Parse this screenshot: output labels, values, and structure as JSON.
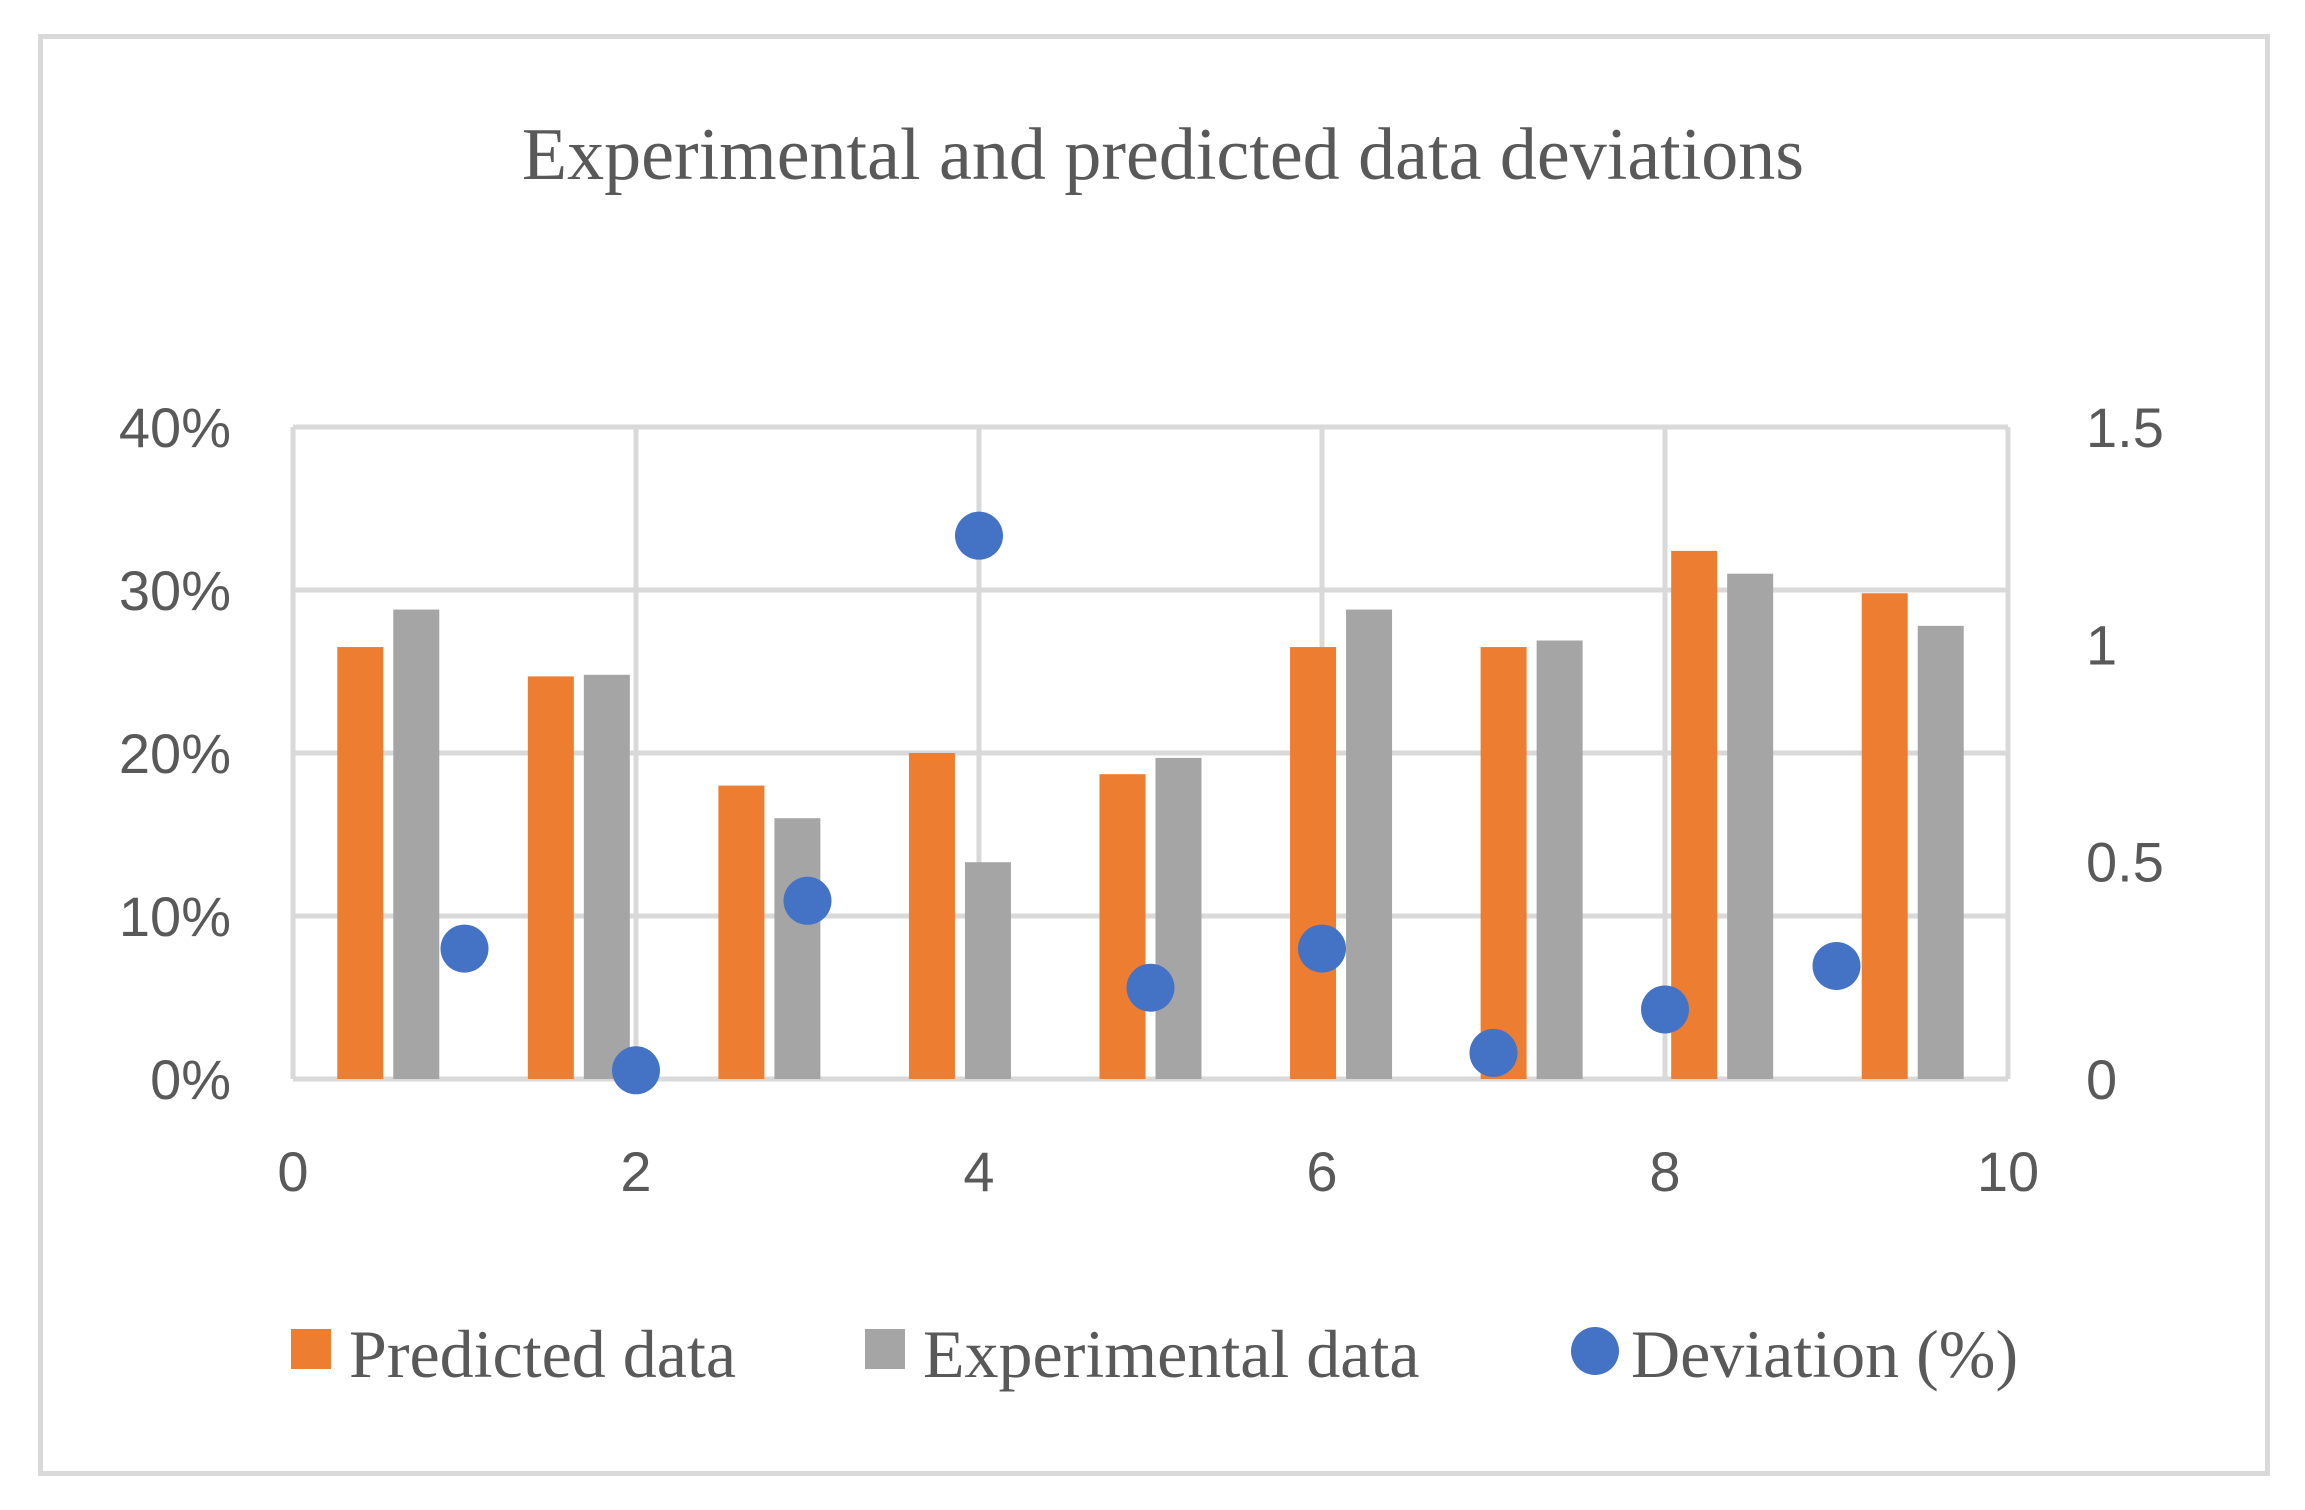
{
  "chart_data": {
    "type": "bar",
    "title": "Experimental and predicted data deviations",
    "x_axis": {
      "min": 0,
      "max": 10,
      "ticks": [
        "0",
        "2",
        "4",
        "6",
        "8",
        "10"
      ]
    },
    "y_left": {
      "min": 0,
      "max": 0.4,
      "ticks": [
        "0%",
        "10%",
        "20%",
        "30%",
        "40%"
      ]
    },
    "y_right": {
      "min": 0,
      "max": 1.5,
      "ticks": [
        "0",
        "0.5",
        "1",
        "1.5"
      ]
    },
    "categories": [
      1,
      2,
      3,
      4,
      5,
      6,
      7,
      8,
      9
    ],
    "series": [
      {
        "name": "Predicted data",
        "kind": "bar",
        "axis": "left",
        "color": "#ed7d31",
        "values": [
          0.265,
          0.247,
          0.18,
          0.2,
          0.187,
          0.265,
          0.265,
          0.324,
          0.298
        ]
      },
      {
        "name": "Experimental data",
        "kind": "bar",
        "axis": "left",
        "color": "#a5a5a5",
        "values": [
          0.288,
          0.248,
          0.16,
          0.133,
          0.197,
          0.288,
          0.269,
          0.31,
          0.278
        ]
      },
      {
        "name": "Deviation (%)",
        "kind": "scatter",
        "axis": "right",
        "color": "#4472c4",
        "points": [
          {
            "x": 1,
            "y": 0.3
          },
          {
            "x": 2,
            "y": 0.02
          },
          {
            "x": 3,
            "y": 0.41
          },
          {
            "x": 4,
            "y": 1.25
          },
          {
            "x": 5,
            "y": 0.21
          },
          {
            "x": 6,
            "y": 0.3
          },
          {
            "x": 7,
            "y": 0.06
          },
          {
            "x": 8,
            "y": 0.16
          },
          {
            "x": 9,
            "y": 0.26
          }
        ]
      }
    ],
    "legend_position": "bottom",
    "grid": true
  }
}
